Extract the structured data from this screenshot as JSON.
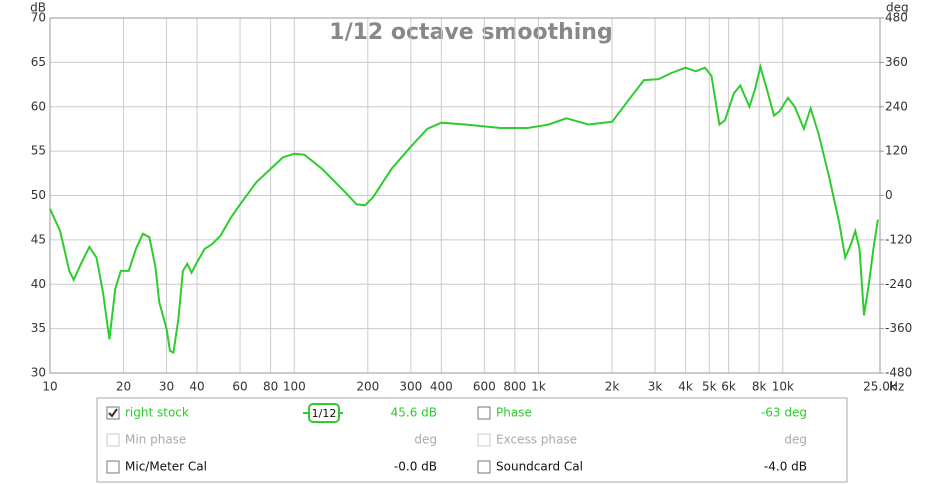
{
  "chart_data": {
    "type": "line",
    "title": "1/12 octave smoothing",
    "ylabel": "dB",
    "y2label": "deg",
    "xlabel": "Hz",
    "xscale": "log",
    "grid": true,
    "xlim": [
      10,
      25000
    ],
    "xticks": [
      10,
      20,
      30,
      40,
      60,
      80,
      100,
      200,
      300,
      400,
      600,
      800,
      {
        "value": 1000,
        "label": "1k"
      },
      {
        "value": 2000,
        "label": "2k"
      },
      {
        "value": 3000,
        "label": "3k"
      },
      {
        "value": 4000,
        "label": "4k"
      },
      {
        "value": 5000,
        "label": "5k"
      },
      {
        "value": 6000,
        "label": "6k"
      },
      {
        "value": 8000,
        "label": "8k"
      },
      {
        "value": 10000,
        "label": "10k"
      },
      {
        "value": 25000,
        "label": "25.0k"
      }
    ],
    "ylim": [
      30,
      70
    ],
    "yticks": [
      30,
      35,
      40,
      45,
      50,
      55,
      60,
      65,
      70
    ],
    "y2lim": [
      -480,
      480
    ],
    "y2ticks": [
      -480,
      -360,
      -240,
      -120,
      0,
      120,
      240,
      360,
      480
    ],
    "x": [
      10,
      11,
      12,
      12.5,
      13.5,
      14.5,
      15.5,
      16.5,
      17.5,
      18.5,
      19.5,
      21,
      22.5,
      24,
      25.5,
      27,
      28,
      30,
      31,
      32,
      33.5,
      35,
      36.5,
      38,
      40,
      43,
      46,
      50,
      55,
      60,
      70,
      80,
      90,
      100,
      110,
      130,
      160,
      180,
      195,
      210,
      250,
      300,
      350,
      400,
      500,
      700,
      900,
      1000,
      1100,
      1300,
      1600,
      2000,
      2300,
      2700,
      3100,
      3500,
      4000,
      4400,
      4800,
      5100,
      5500,
      5800,
      6300,
      6700,
      7300,
      7700,
      8100,
      8600,
      9200,
      9700,
      10500,
      11200,
      12200,
      13000,
      14000,
      15500,
      17000,
      18000,
      19000,
      19800,
      20600,
      21500,
      22500,
      23500,
      24500
    ],
    "series": [
      {
        "name": "right stock",
        "color": "#2ecc2e",
        "values": [
          48.5,
          46,
          41.5,
          40.5,
          42.5,
          44.2,
          43,
          39,
          33.8,
          39.5,
          41.5,
          41.5,
          44,
          45.7,
          45.3,
          42,
          38,
          35,
          32.5,
          32.3,
          36,
          41.5,
          42.3,
          41.3,
          42.5,
          44,
          44.5,
          45.5,
          47.5,
          49,
          51.5,
          53,
          54.3,
          54.7,
          54.6,
          53,
          50.5,
          49,
          48.9,
          49.8,
          53,
          55.5,
          57.5,
          58.2,
          58,
          57.6,
          57.6,
          57.8,
          58,
          58.7,
          58,
          58.3,
          60.5,
          63,
          63.1,
          63.8,
          64.4,
          64,
          64.4,
          63.5,
          58,
          58.5,
          61.5,
          62.4,
          60,
          62,
          64.5,
          62,
          59,
          59.5,
          61,
          60,
          57.5,
          59.8,
          57,
          52,
          47,
          43,
          44.5,
          46,
          44,
          36.5,
          40,
          44,
          47.3
        ]
      }
    ]
  },
  "panel": {
    "smoothing": "1/12",
    "items": [
      {
        "value": "45.6 dB",
        "checked": true,
        "enabled": true
      },
      {
        "label": "Phase",
        "value": "-63 deg",
        "checked": false,
        "enabled": true
      },
      {
        "label": "Min phase",
        "value": "deg",
        "checked": false,
        "enabled": false
      },
      {
        "label": "Excess phase",
        "value": "deg",
        "checked": false,
        "enabled": false
      },
      {
        "label": "Mic/Meter Cal",
        "value": "-0.0 dB",
        "checked": false,
        "enabled": true
      },
      {
        "label": "Soundcard Cal",
        "value": "-4.0 dB",
        "checked": false,
        "enabled": true
      }
    ]
  }
}
